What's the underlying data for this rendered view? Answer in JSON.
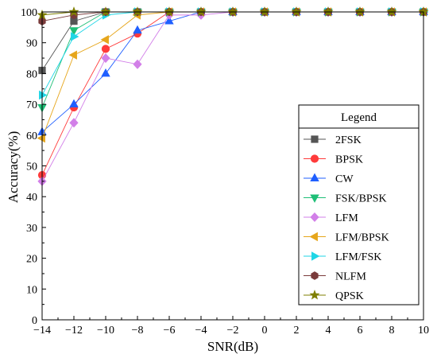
{
  "chart_data": {
    "type": "line",
    "xlabel": "SNR(dB)",
    "ylabel": "Accuracy(%)",
    "xlim": [
      -14,
      10
    ],
    "ylim": [
      0,
      100
    ],
    "xticks": [
      "−14",
      "−12",
      "−10",
      "−8",
      "−6",
      "−4",
      "−2",
      "0",
      "2",
      "4",
      "6",
      "8",
      "10"
    ],
    "yticks": [
      "0",
      "10",
      "20",
      "30",
      "40",
      "50",
      "60",
      "70",
      "80",
      "90",
      "100"
    ],
    "x": [
      -14,
      -12,
      -10,
      -8,
      -6,
      -4,
      -2,
      0,
      2,
      4,
      6,
      8,
      10
    ],
    "grid": false,
    "legend": {
      "title": "Legend",
      "placement": "bottom-right"
    },
    "series": [
      {
        "name": "2FSK",
        "color": "#555555",
        "marker": "square",
        "values": [
          81,
          97,
          100,
          100,
          100,
          100,
          100,
          100,
          100,
          100,
          100,
          100,
          100
        ]
      },
      {
        "name": "BPSK",
        "color": "#ff3b3b",
        "marker": "circle",
        "values": [
          47,
          69,
          88,
          93,
          100,
          100,
          100,
          100,
          100,
          100,
          100,
          100,
          100
        ]
      },
      {
        "name": "CW",
        "color": "#1f5fff",
        "marker": "triangle-up",
        "values": [
          61,
          70,
          80,
          94,
          97,
          100,
          100,
          100,
          100,
          100,
          100,
          100,
          100
        ]
      },
      {
        "name": "FSK/BPSK",
        "color": "#1fbf77",
        "marker": "triangle-down",
        "values": [
          69,
          94,
          100,
          100,
          100,
          100,
          100,
          100,
          100,
          100,
          100,
          100,
          100
        ]
      },
      {
        "name": "LFM",
        "color": "#d27fe8",
        "marker": "diamond",
        "values": [
          45,
          64,
          85,
          83,
          99,
          99,
          100,
          100,
          100,
          100,
          100,
          100,
          100
        ]
      },
      {
        "name": "LFM/BPSK",
        "color": "#e6a61c",
        "marker": "triangle-left",
        "values": [
          59,
          86,
          91,
          99,
          100,
          100,
          100,
          100,
          100,
          100,
          100,
          100,
          100
        ]
      },
      {
        "name": "LFM/FSK",
        "color": "#1fd6e6",
        "marker": "triangle-right",
        "values": [
          73,
          92,
          99,
          100,
          100,
          100,
          100,
          100,
          100,
          100,
          100,
          100,
          100
        ]
      },
      {
        "name": "NLFM",
        "color": "#7a3b3b",
        "marker": "hexagon",
        "values": [
          97,
          99,
          100,
          100,
          100,
          100,
          100,
          100,
          100,
          100,
          100,
          100,
          100
        ]
      },
      {
        "name": "QPSK",
        "color": "#7f7f00",
        "marker": "star",
        "values": [
          99,
          100,
          100,
          100,
          100,
          100,
          100,
          100,
          100,
          100,
          100,
          100,
          100
        ]
      }
    ]
  }
}
